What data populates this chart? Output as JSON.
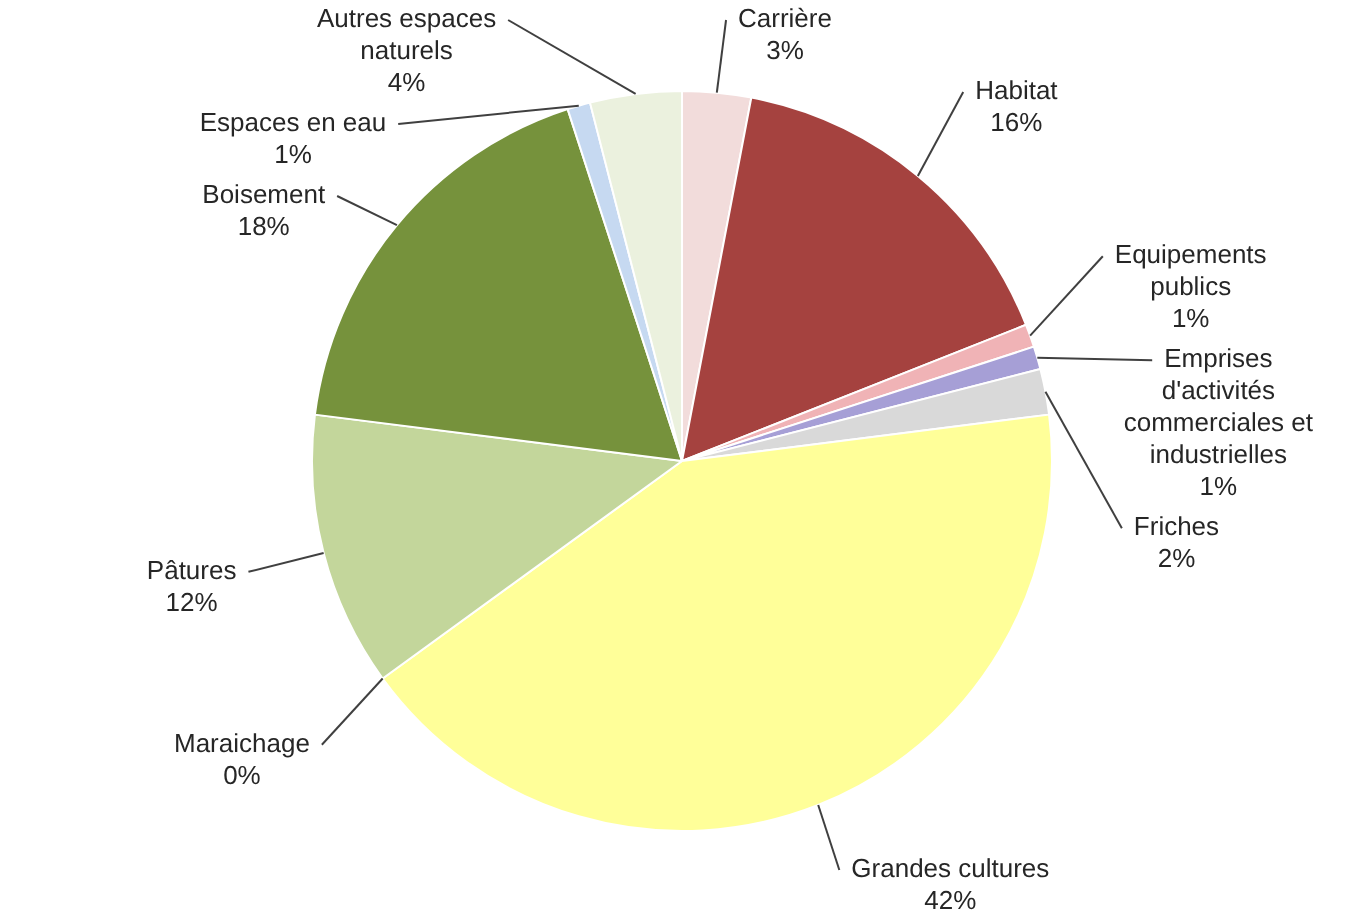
{
  "chart_data": {
    "type": "pie",
    "categories": [
      "Carrière",
      "Habitat",
      "Equipements publics",
      "Emprises d'activités commerciales et industrielles",
      "Friches",
      "Grandes cultures",
      "Maraichage",
      "Pâtures",
      "Boisement",
      "Espaces en eau",
      "Autres espaces naturels"
    ],
    "values": [
      3,
      16,
      1,
      1,
      2,
      42,
      0,
      12,
      18,
      1,
      4
    ],
    "value_labels": [
      "3%",
      "16%",
      "1%",
      "1%",
      "2%",
      "42%",
      "0%",
      "12%",
      "18%",
      "1%",
      "4%"
    ],
    "colors": [
      "#f2dcdb",
      "#a5423f",
      "#f0b3b6",
      "#a69fd6",
      "#d9d9d9",
      "#ffff99",
      "#e6b9b8",
      "#c3d69b",
      "#76923c",
      "#c6d9f1",
      "#ebf1de"
    ],
    "legend": false
  }
}
